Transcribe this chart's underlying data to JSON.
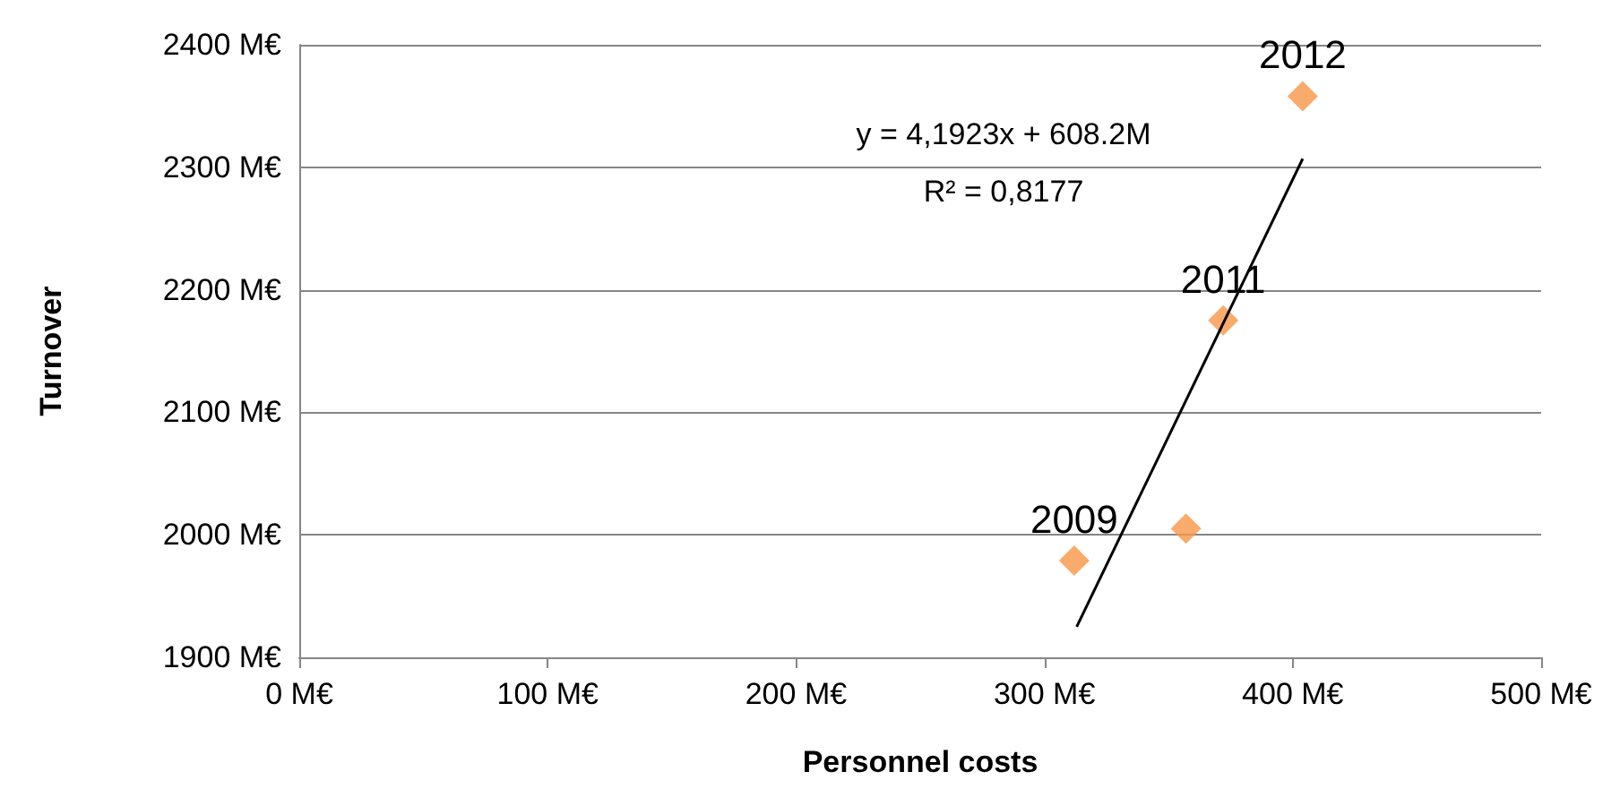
{
  "chart_data": {
    "type": "scatter",
    "xlabel": "Personnel costs",
    "ylabel": "Turnover",
    "marker": "diamond",
    "grid": "y",
    "series": [
      {
        "color": "#f79646",
        "x": [
          312,
          357,
          372,
          404
        ],
        "values": [
          1979,
          2005,
          2175,
          2358
        ]
      },
      {
        "type": "line",
        "color": "#000000",
        "x": [
          313,
          404
        ],
        "values": [
          1925,
          2307
        ],
        "marker": "none"
      }
    ],
    "xlim": [
      0,
      500
    ],
    "xticks": [
      {
        "value": 0,
        "label": "0 M€"
      },
      {
        "value": 100,
        "label": "100 M€"
      },
      {
        "value": 200,
        "label": "200 M€"
      },
      {
        "value": 300,
        "label": "300 M€"
      },
      {
        "value": 400,
        "label": "400 M€"
      },
      {
        "value": 500,
        "label": "500 M€"
      }
    ],
    "ylim": [
      1900,
      2400
    ],
    "yticks": [
      {
        "value": 1900,
        "label": "1900 M€"
      },
      {
        "value": 2000,
        "label": "2000 M€"
      },
      {
        "value": 2100,
        "label": "2100 M€"
      },
      {
        "value": 2200,
        "label": "2200 M€"
      },
      {
        "value": 2300,
        "label": "2300 M€"
      },
      {
        "value": 2400,
        "label": "2400 M€"
      }
    ],
    "annotations": [
      {
        "text": "2009",
        "x": 312,
        "y": 1979
      },
      {
        "text": "2011",
        "x": 372,
        "y": 2175
      },
      {
        "text": "2012",
        "x": 404,
        "y": 2358
      },
      "y = 4,1923x + 608.2M",
      "R² = 0,8177"
    ]
  }
}
